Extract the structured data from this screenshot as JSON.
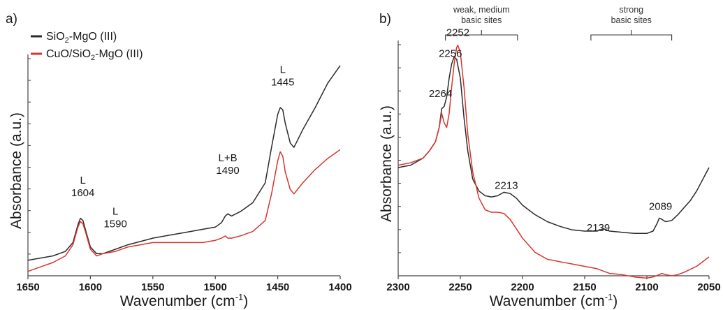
{
  "colors": {
    "series_black": "#2b2b2b",
    "series_red": "#d9352c",
    "axis": "#444444"
  },
  "chart_data": [
    {
      "type": "line",
      "panel_label": "a)",
      "xlabel": "Wavenumber (cm",
      "xlabel_sup": "-1",
      "xlabel_end": ")",
      "ylabel": "Absorbance (a.u.)",
      "xlim": [
        1650,
        1400
      ],
      "xticks": [
        "1650",
        "1600",
        "1550",
        "1500",
        "1450",
        "1400"
      ],
      "ylim": [
        0,
        1
      ],
      "legend_position": "top-left",
      "legend": [
        {
          "name_pre": "SiO",
          "name_sub": "2",
          "name_post": "-MgO (III)",
          "color": "#2b2b2b"
        },
        {
          "name_pre": "CuO/SiO",
          "name_sub": "2",
          "name_post": "-MgO (III)",
          "color": "#d9352c"
        }
      ],
      "annotations": [
        {
          "lines": [
            "L",
            "1604"
          ],
          "x": 1606,
          "y": 0.36
        },
        {
          "lines": [
            "L",
            "1590"
          ],
          "x": 1580,
          "y": 0.22
        },
        {
          "lines": [
            "L+B",
            "1490"
          ],
          "x": 1490,
          "y": 0.46
        },
        {
          "lines": [
            "L",
            "1445"
          ],
          "x": 1446,
          "y": 0.86
        }
      ],
      "series": [
        {
          "color": "#2b2b2b",
          "x": [
            1650,
            1640,
            1630,
            1620,
            1614,
            1610,
            1608,
            1606,
            1604,
            1600,
            1595,
            1590,
            1580,
            1570,
            1560,
            1550,
            1540,
            1530,
            1520,
            1510,
            1500,
            1495,
            1492,
            1490,
            1487,
            1480,
            1470,
            1460,
            1455,
            1450,
            1448,
            1446,
            1444,
            1440,
            1437,
            1430,
            1420,
            1410,
            1400
          ],
          "y": [
            0.07,
            0.08,
            0.09,
            0.11,
            0.15,
            0.23,
            0.26,
            0.25,
            0.21,
            0.13,
            0.1,
            0.1,
            0.12,
            0.14,
            0.155,
            0.17,
            0.18,
            0.19,
            0.2,
            0.21,
            0.22,
            0.24,
            0.27,
            0.28,
            0.27,
            0.29,
            0.33,
            0.42,
            0.58,
            0.73,
            0.76,
            0.75,
            0.69,
            0.6,
            0.58,
            0.66,
            0.76,
            0.87,
            0.95
          ]
        },
        {
          "color": "#d9352c",
          "x": [
            1650,
            1640,
            1630,
            1620,
            1614,
            1610,
            1608,
            1606,
            1604,
            1600,
            1595,
            1590,
            1580,
            1570,
            1560,
            1550,
            1540,
            1530,
            1520,
            1510,
            1500,
            1495,
            1492,
            1490,
            1487,
            1480,
            1470,
            1460,
            1455,
            1450,
            1448,
            1446,
            1444,
            1440,
            1437,
            1430,
            1420,
            1410,
            1400
          ],
          "y": [
            0.02,
            0.04,
            0.06,
            0.09,
            0.14,
            0.22,
            0.245,
            0.235,
            0.2,
            0.12,
            0.09,
            0.1,
            0.11,
            0.13,
            0.14,
            0.15,
            0.15,
            0.15,
            0.15,
            0.15,
            0.16,
            0.17,
            0.18,
            0.17,
            0.17,
            0.18,
            0.2,
            0.25,
            0.37,
            0.52,
            0.56,
            0.54,
            0.47,
            0.39,
            0.37,
            0.42,
            0.48,
            0.53,
            0.57
          ]
        }
      ]
    },
    {
      "type": "line",
      "panel_label": "b)",
      "xlabel": "Wavenumber (cm",
      "xlabel_sup": "-1",
      "xlabel_end": ")",
      "ylabel": "Absorbance (a.u.)",
      "xlim": [
        2300,
        2050
      ],
      "xticks": [
        "2300",
        "2250",
        "2200",
        "2150",
        "2100",
        "2050"
      ],
      "ylim": [
        0,
        1
      ],
      "brackets": [
        {
          "lines": [
            "weak, medium",
            "basic sites"
          ],
          "from": 2262,
          "to": 2204
        },
        {
          "lines": [
            "strong",
            "basic sites"
          ],
          "from": 2145,
          "to": 2080
        }
      ],
      "annotations": [
        {
          "lines": [
            "2252"
          ],
          "x": 2252,
          "y": 1.02
        },
        {
          "lines": [
            "2256"
          ],
          "x": 2258,
          "y": 0.93
        },
        {
          "lines": [
            "2264"
          ],
          "x": 2266,
          "y": 0.76
        },
        {
          "lines": [
            "2213"
          ],
          "x": 2213,
          "y": 0.37
        },
        {
          "lines": [
            "2139"
          ],
          "x": 2139,
          "y": 0.19
        },
        {
          "lines": [
            "2089"
          ],
          "x": 2089,
          "y": 0.28
        }
      ],
      "series": [
        {
          "color": "#2b2b2b",
          "x": [
            2300,
            2290,
            2280,
            2275,
            2270,
            2267,
            2265,
            2263,
            2261,
            2259,
            2257,
            2255,
            2253,
            2250,
            2247,
            2244,
            2240,
            2235,
            2230,
            2225,
            2220,
            2215,
            2210,
            2205,
            2200,
            2190,
            2180,
            2170,
            2160,
            2150,
            2140,
            2135,
            2130,
            2120,
            2110,
            2100,
            2095,
            2092,
            2090,
            2088,
            2085,
            2080,
            2075,
            2070,
            2065,
            2060,
            2055,
            2050
          ],
          "y": [
            0.46,
            0.47,
            0.5,
            0.53,
            0.57,
            0.63,
            0.71,
            0.72,
            0.76,
            0.84,
            0.9,
            0.93,
            0.92,
            0.84,
            0.67,
            0.53,
            0.41,
            0.36,
            0.34,
            0.335,
            0.34,
            0.355,
            0.35,
            0.33,
            0.3,
            0.26,
            0.23,
            0.21,
            0.195,
            0.19,
            0.19,
            0.2,
            0.19,
            0.185,
            0.18,
            0.18,
            0.19,
            0.22,
            0.245,
            0.24,
            0.23,
            0.235,
            0.26,
            0.29,
            0.32,
            0.36,
            0.41,
            0.46
          ]
        },
        {
          "color": "#d9352c",
          "x": [
            2300,
            2290,
            2280,
            2275,
            2270,
            2267,
            2265,
            2263,
            2261,
            2259,
            2257,
            2255,
            2253,
            2252,
            2250,
            2247,
            2244,
            2240,
            2235,
            2230,
            2225,
            2220,
            2215,
            2210,
            2205,
            2200,
            2190,
            2180,
            2170,
            2160,
            2150,
            2140,
            2130,
            2120,
            2110,
            2100,
            2095,
            2090,
            2088,
            2085,
            2080,
            2075,
            2070,
            2060,
            2050
          ],
          "y": [
            0.47,
            0.48,
            0.5,
            0.53,
            0.57,
            0.63,
            0.69,
            0.65,
            0.63,
            0.69,
            0.8,
            0.9,
            0.97,
            0.98,
            0.95,
            0.8,
            0.6,
            0.44,
            0.33,
            0.28,
            0.27,
            0.27,
            0.265,
            0.24,
            0.2,
            0.16,
            0.1,
            0.07,
            0.06,
            0.05,
            0.04,
            0.03,
            0.01,
            0.005,
            -0.005,
            -0.01,
            -0.005,
            0.005,
            0.01,
            0.005,
            0.0,
            0.005,
            0.015,
            0.04,
            0.08
          ]
        }
      ]
    }
  ]
}
